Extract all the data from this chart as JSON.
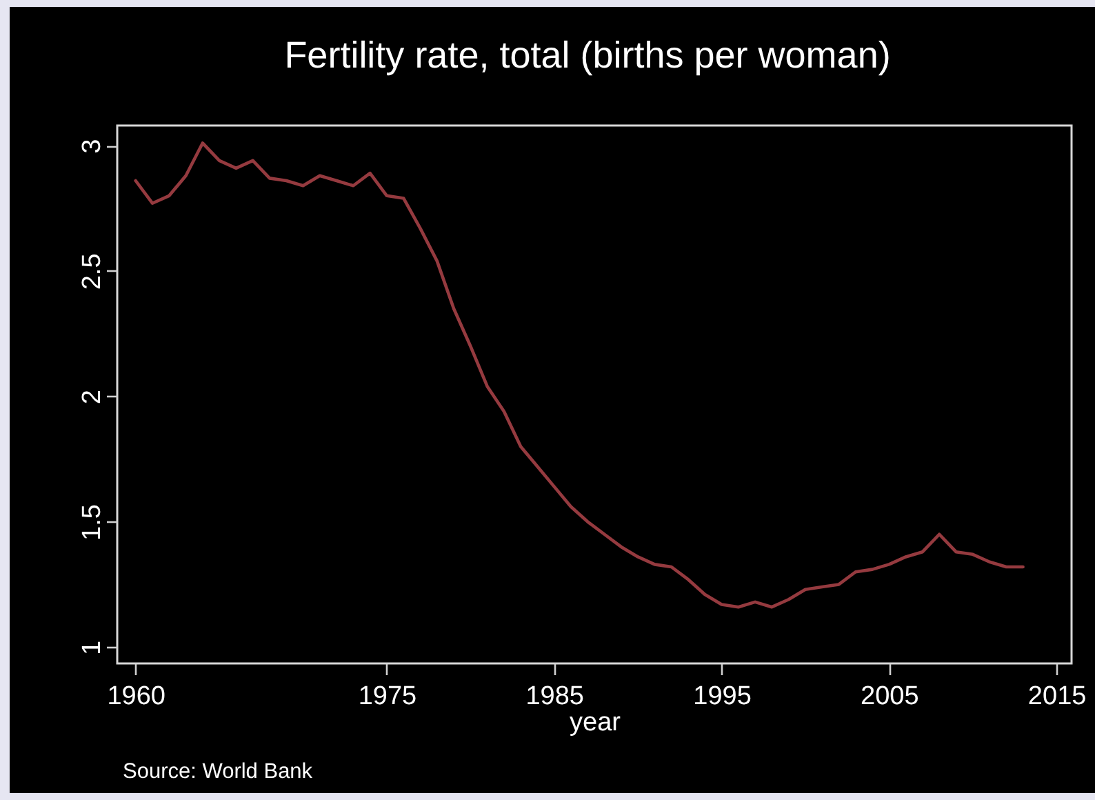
{
  "chart_data": {
    "type": "line",
    "title": "Fertility rate, total (births per woman)",
    "xlabel": "year",
    "annotations": [
      "Source: World Bank"
    ],
    "x": [
      1960,
      1961,
      1962,
      1963,
      1964,
      1965,
      1966,
      1967,
      1968,
      1969,
      1970,
      1971,
      1972,
      1973,
      1974,
      1975,
      1976,
      1977,
      1978,
      1979,
      1980,
      1981,
      1982,
      1983,
      1984,
      1985,
      1986,
      1987,
      1988,
      1989,
      1990,
      1991,
      1992,
      1993,
      1994,
      1995,
      1996,
      1997,
      1998,
      1999,
      2000,
      2001,
      2002,
      2003,
      2004,
      2005,
      2006,
      2007,
      2008,
      2009,
      2010,
      2011,
      2012,
      2013
    ],
    "series": [
      {
        "color": "#953a3f",
        "values": [
          2.86,
          2.77,
          2.8,
          2.88,
          3.01,
          2.94,
          2.91,
          2.94,
          2.87,
          2.86,
          2.84,
          2.88,
          2.86,
          2.84,
          2.89,
          2.8,
          2.79,
          2.67,
          2.54,
          2.35,
          2.2,
          2.04,
          1.94,
          1.8,
          1.72,
          1.64,
          1.56,
          1.5,
          1.45,
          1.4,
          1.36,
          1.33,
          1.32,
          1.27,
          1.21,
          1.17,
          1.16,
          1.18,
          1.16,
          1.19,
          1.23,
          1.24,
          1.25,
          1.3,
          1.31,
          1.33,
          1.36,
          1.38,
          1.45,
          1.38,
          1.37,
          1.34,
          1.32,
          1.32
        ]
      }
    ],
    "xlim": [
      1958.9,
      2015.9
    ],
    "xticks": [
      1960,
      1975,
      1985,
      1995,
      2005,
      2015
    ],
    "ylim": [
      0.935,
      3.08
    ],
    "yticks": [
      1,
      1.5,
      2,
      2.5,
      3
    ],
    "grid": false,
    "line_style": "solid"
  }
}
